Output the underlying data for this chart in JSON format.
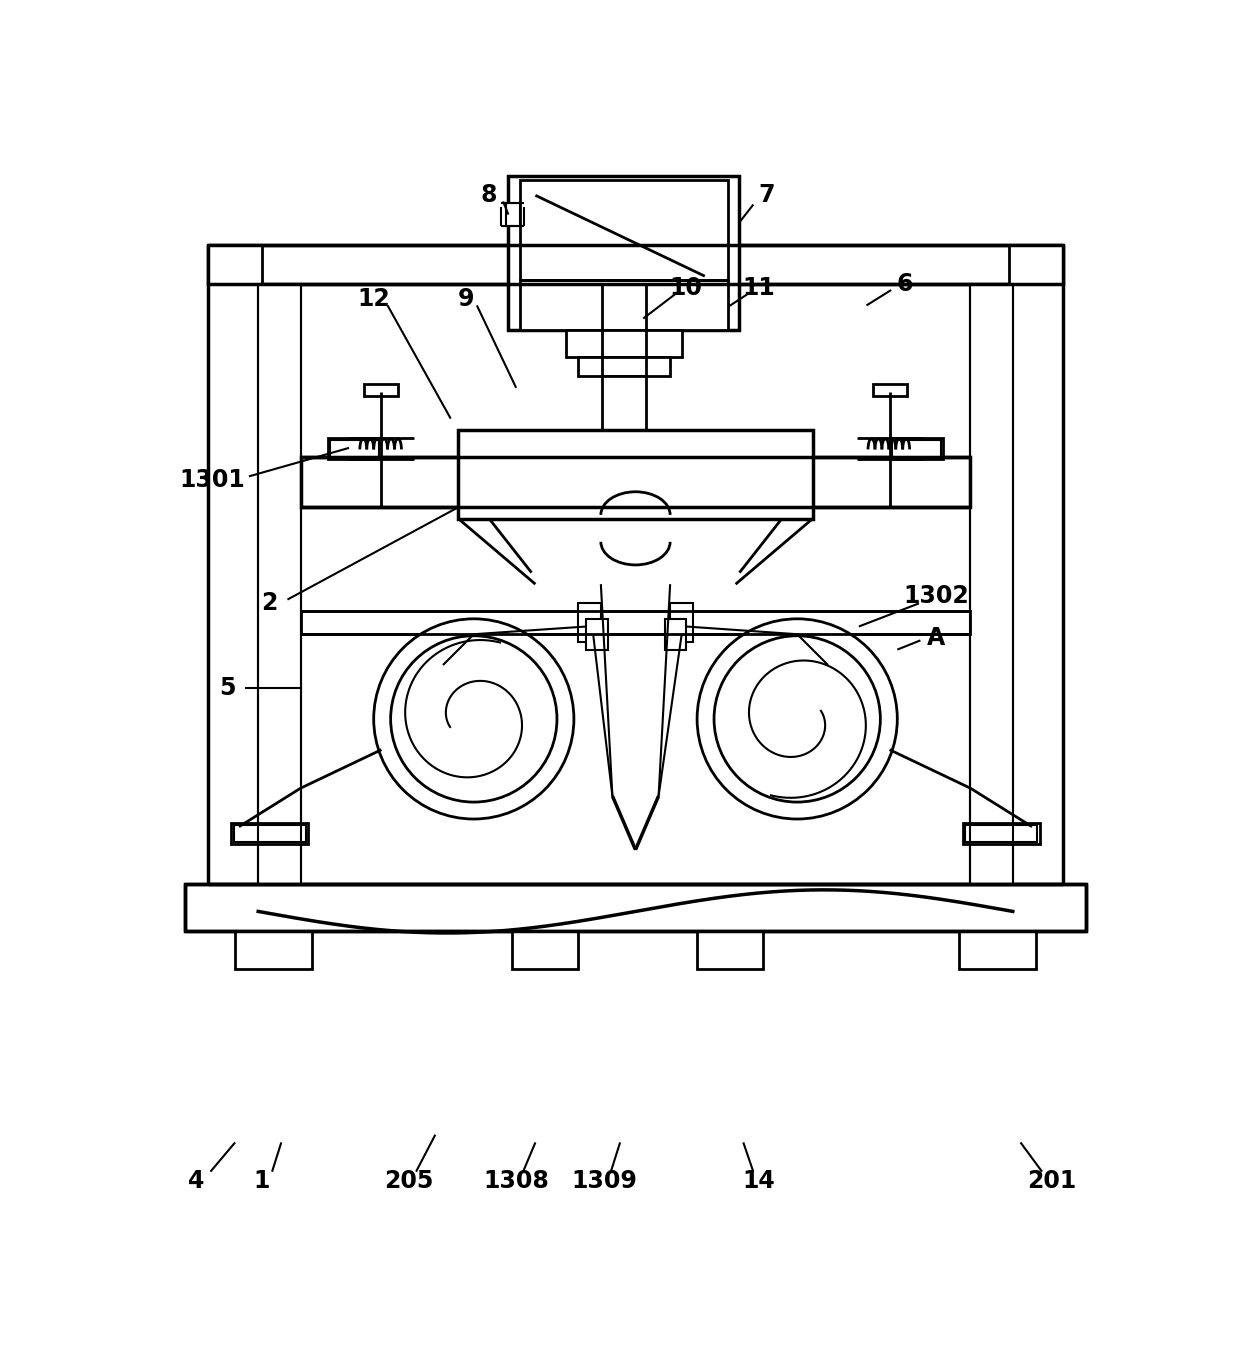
{
  "bg_color": "#ffffff",
  "line_color": "#000000",
  "lw": 1.5,
  "lw2": 2.0,
  "lw3": 2.5,
  "label_fontsize": 17,
  "figsize": [
    12.4,
    13.71
  ],
  "dpi": 100
}
